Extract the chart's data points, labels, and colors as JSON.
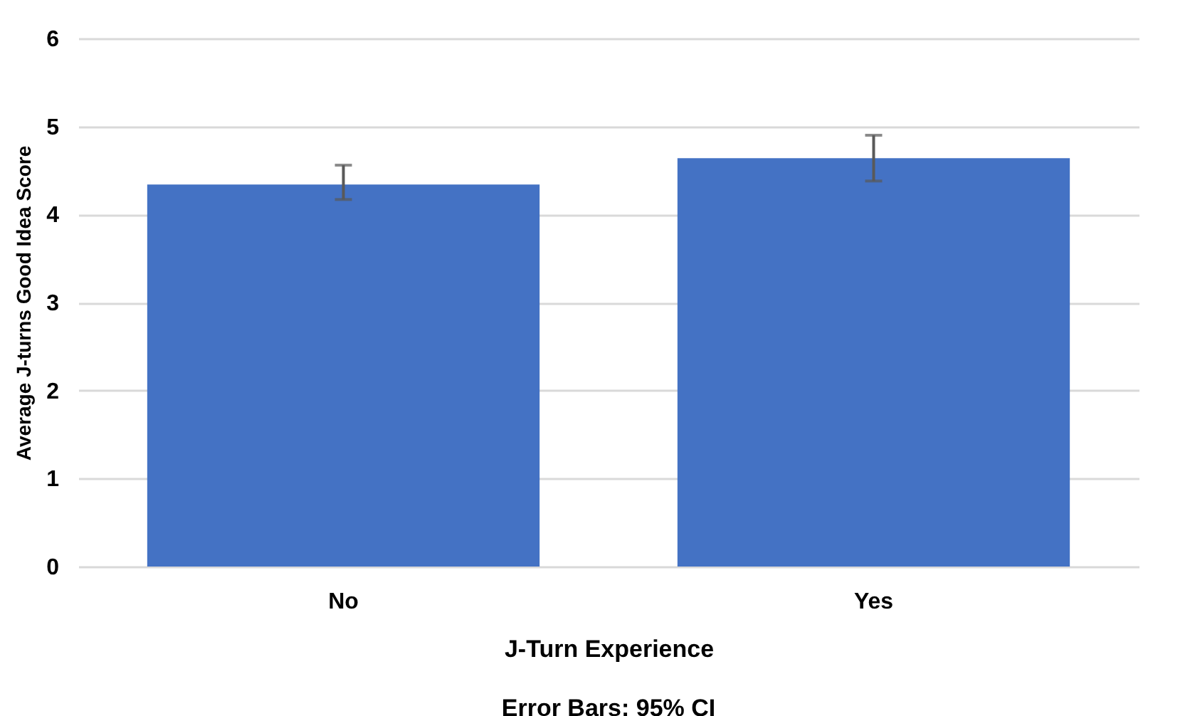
{
  "chart_data": {
    "type": "bar",
    "categories": [
      "No",
      "Yes"
    ],
    "values": [
      4.34,
      4.64
    ],
    "color": "#4472c4",
    "errors": [
      [
        4.17,
        4.56
      ],
      [
        4.38,
        4.9
      ]
    ],
    "xlabel": "J-Turn Experience",
    "ylabel": "Average J-turns Good Idea Score",
    "annotations": [
      "Error Bars: 95% CI"
    ],
    "ylim": [
      0,
      6
    ],
    "yticks": [
      0,
      1,
      2,
      3,
      4,
      5,
      6
    ],
    "grid": "y"
  }
}
